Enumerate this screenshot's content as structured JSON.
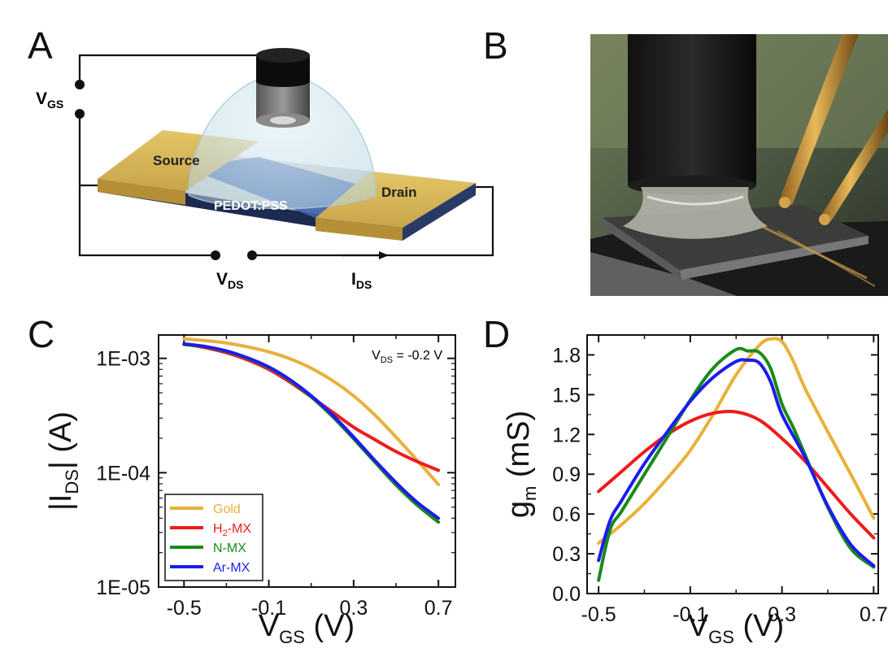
{
  "panels": {
    "A": {
      "letter": "A",
      "labels": {
        "vgs_main": "V",
        "vgs_sub": "GS",
        "vds_main": "V",
        "vds_sub": "DS",
        "ids_main": "I",
        "ids_sub": "DS",
        "source": "Source",
        "drain": "Drain",
        "channel": "PEDOT:PSS"
      }
    },
    "B": {
      "letter": "B"
    },
    "C": {
      "letter": "C"
    },
    "D": {
      "letter": "D"
    }
  },
  "chart_data": [
    {
      "panel": "C",
      "type": "line",
      "y_scale": "log",
      "xlim": [
        -0.62,
        0.78
      ],
      "ylim": [
        1e-05,
        0.0016
      ],
      "x_ticks": [
        "-0.5",
        "-0.1",
        "0.3",
        "0.7"
      ],
      "x_tick_values": [
        -0.5,
        -0.1,
        0.3,
        0.7
      ],
      "y_ticks": [
        "1E-03",
        "1E-04",
        "1E-05"
      ],
      "y_tick_values": [
        0.001,
        0.0001,
        1e-05
      ],
      "xlabel": {
        "main": "V",
        "sub": "GS",
        "unit": " (V)"
      },
      "ylabel": {
        "pre": "|I",
        "sub": "DS",
        "post": "| (A)"
      },
      "annotation": {
        "main": "V",
        "sub": "DS",
        "rest": " = -0.2 V"
      },
      "legend_position": "bottom-left",
      "series": [
        {
          "name": "Gold",
          "name_main": "Gold",
          "name_sub": "",
          "name_post": "",
          "color": "#e8b13b",
          "x": [
            -0.5,
            -0.4,
            -0.3,
            -0.2,
            -0.1,
            0.0,
            0.1,
            0.2,
            0.3,
            0.4,
            0.5,
            0.6,
            0.7
          ],
          "y": [
            0.00148,
            0.00143,
            0.00136,
            0.00126,
            0.00114,
            0.00099,
            0.00082,
            0.00064,
            0.00047,
            0.00032,
            0.000205,
            0.000128,
            7.9e-05
          ]
        },
        {
          "name": "H2-MX",
          "name_main": "H",
          "name_sub": "2",
          "name_post": "-MX",
          "color": "#ee1c1c",
          "x": [
            -0.5,
            -0.4,
            -0.3,
            -0.2,
            -0.1,
            0.0,
            0.1,
            0.2,
            0.3,
            0.4,
            0.5,
            0.6,
            0.7
          ],
          "y": [
            0.00133,
            0.00124,
            0.00112,
            0.00097,
            0.0008,
            0.00062,
            0.00046,
            0.00034,
            0.00025,
            0.000195,
            0.000153,
            0.000125,
            0.000105
          ]
        },
        {
          "name": "N-MX",
          "name_main": "N-MX",
          "name_sub": "",
          "name_post": "",
          "color": "#1a8a1a",
          "x": [
            -0.5,
            -0.4,
            -0.3,
            -0.2,
            -0.1,
            0.0,
            0.1,
            0.2,
            0.3,
            0.4,
            0.5,
            0.6,
            0.7
          ],
          "y": [
            0.00132,
            0.00126,
            0.00115,
            0.001,
            0.00083,
            0.00064,
            0.00046,
            0.00031,
            0.000198,
            0.000124,
            7.8e-05,
            5.2e-05,
            3.7e-05
          ]
        },
        {
          "name": "Ar-MX",
          "name_main": "Ar-MX",
          "name_sub": "",
          "name_post": "",
          "color": "#1c1cee",
          "x": [
            -0.5,
            -0.4,
            -0.3,
            -0.2,
            -0.1,
            0.0,
            0.1,
            0.2,
            0.3,
            0.4,
            0.5,
            0.6,
            0.7
          ],
          "y": [
            0.00134,
            0.00127,
            0.00116,
            0.00101,
            0.00084,
            0.00065,
            0.00047,
            0.00032,
            0.000205,
            0.000128,
            8.2e-05,
            5.5e-05,
            4e-05
          ]
        }
      ]
    },
    {
      "panel": "D",
      "type": "line",
      "xlim": [
        -0.55,
        0.72
      ],
      "ylim": [
        0.0,
        1.95
      ],
      "x_ticks": [
        "-0.5",
        "-0.1",
        "0.3",
        "0.7"
      ],
      "x_tick_values": [
        -0.5,
        -0.1,
        0.3,
        0.7
      ],
      "y_ticks": [
        "0.0",
        "0.3",
        "0.6",
        "0.9",
        "1.2",
        "1.5",
        "1.8"
      ],
      "y_tick_values": [
        0.0,
        0.3,
        0.6,
        0.9,
        1.2,
        1.5,
        1.8
      ],
      "xlabel": {
        "main": "V",
        "sub": "GS",
        "unit": " (V)"
      },
      "ylabel": {
        "main": "g",
        "sub": "m",
        "unit": " (mS)"
      },
      "series": [
        {
          "name": "Gold",
          "color": "#e8b13b",
          "x": [
            -0.5,
            -0.4,
            -0.3,
            -0.2,
            -0.1,
            0.0,
            0.1,
            0.2,
            0.25,
            0.3,
            0.35,
            0.4,
            0.5,
            0.6,
            0.7
          ],
          "y": [
            0.38,
            0.52,
            0.68,
            0.87,
            1.08,
            1.35,
            1.65,
            1.87,
            1.92,
            1.9,
            1.75,
            1.55,
            1.22,
            0.9,
            0.57
          ]
        },
        {
          "name": "H2-MX",
          "color": "#ee1c1c",
          "x": [
            -0.5,
            -0.4,
            -0.3,
            -0.2,
            -0.1,
            0.0,
            0.1,
            0.2,
            0.3,
            0.4,
            0.5,
            0.6,
            0.7
          ],
          "y": [
            0.77,
            0.92,
            1.07,
            1.2,
            1.3,
            1.36,
            1.37,
            1.31,
            1.17,
            1.0,
            0.8,
            0.6,
            0.42
          ]
        },
        {
          "name": "N-MX",
          "color": "#1a8a1a",
          "x": [
            -0.5,
            -0.45,
            -0.4,
            -0.3,
            -0.2,
            -0.1,
            0.0,
            0.1,
            0.15,
            0.2,
            0.25,
            0.3,
            0.35,
            0.4,
            0.5,
            0.6,
            0.7
          ],
          "y": [
            0.1,
            0.48,
            0.62,
            0.9,
            1.18,
            1.46,
            1.7,
            1.84,
            1.83,
            1.82,
            1.7,
            1.43,
            1.25,
            1.05,
            0.65,
            0.34,
            0.2
          ]
        },
        {
          "name": "Ar-MX",
          "color": "#1c1cee",
          "x": [
            -0.5,
            -0.45,
            -0.4,
            -0.3,
            -0.2,
            -0.1,
            0.0,
            0.1,
            0.15,
            0.2,
            0.25,
            0.3,
            0.4,
            0.5,
            0.6,
            0.7
          ],
          "y": [
            0.25,
            0.55,
            0.7,
            0.98,
            1.22,
            1.45,
            1.63,
            1.75,
            1.76,
            1.74,
            1.6,
            1.35,
            1.03,
            0.66,
            0.37,
            0.21
          ]
        }
      ]
    }
  ]
}
